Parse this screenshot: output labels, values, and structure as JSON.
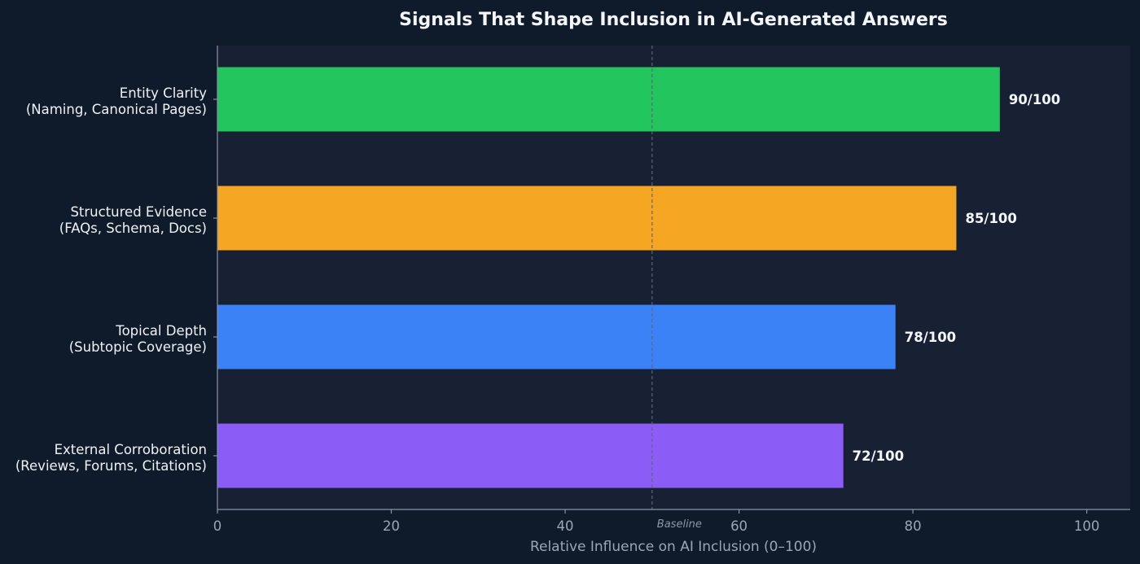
{
  "chart_data": {
    "type": "bar",
    "orientation": "horizontal",
    "title": "Signals That Shape Inclusion in AI-Generated Answers",
    "xlabel": "Relative Influence on AI Inclusion (0–100)",
    "ylabel": "",
    "xlim": [
      0,
      105
    ],
    "xticks": [
      0,
      20,
      40,
      60,
      80,
      100
    ],
    "grid": false,
    "categories": [
      [
        "Entity Clarity",
        "(Naming, Canonical Pages)"
      ],
      [
        "Structured Evidence",
        "(FAQs, Schema, Docs)"
      ],
      [
        "Topical Depth",
        "(Subtopic Coverage)"
      ],
      [
        "External Corroboration",
        "(Reviews, Forums, Citations)"
      ]
    ],
    "values": [
      90,
      85,
      78,
      72
    ],
    "value_labels": [
      "90/100",
      "85/100",
      "78/100",
      "72/100"
    ],
    "colors": [
      "#22c55e",
      "#f5a623",
      "#3b82f6",
      "#8b5cf6"
    ],
    "reference_line": {
      "value": 50,
      "label": "Baseline"
    }
  },
  "colors": {
    "page_background": "#0f1b2b",
    "plot_background": "#182033",
    "axis": "#8a94a3",
    "baseline_line": "#5c6676"
  }
}
